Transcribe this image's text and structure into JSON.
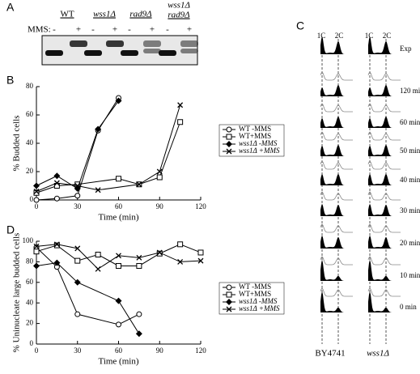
{
  "panel_a": {
    "label": "A",
    "lanes": [
      "WT",
      "wss1Δ",
      "rad9Δ"
    ],
    "double_mutant": [
      "wss1Δ",
      "rad9Δ"
    ],
    "treatment": "MMS:",
    "signs": [
      "-",
      "+",
      "-",
      "+",
      "-",
      "+",
      "-",
      "+"
    ]
  },
  "panel_c": {
    "label": "C",
    "peaks": [
      "1C",
      "2C",
      "1C",
      "2C"
    ],
    "times": [
      "Exp",
      "120 min",
      "60 min",
      "50 min",
      "40 min",
      "30 min",
      "20 min",
      "10 min",
      "0 min"
    ],
    "strains": [
      "BY4741",
      "wss1Δ"
    ]
  },
  "chart_data": [
    {
      "type": "line",
      "panel": "B",
      "xlabel": "Time (min)",
      "ylabel": "% Budded cells",
      "xlim": [
        0,
        120
      ],
      "ylim": [
        0,
        80
      ],
      "xticks": [
        0,
        30,
        60,
        90,
        120
      ],
      "yticks": [
        0,
        20,
        40,
        60,
        80
      ],
      "color": "#000000",
      "series": [
        {
          "name": "WT -MMS",
          "marker": "circle",
          "x": [
            0,
            15,
            30,
            45,
            60
          ],
          "values": [
            0,
            1,
            3,
            49,
            72
          ]
        },
        {
          "name": "WT+MMS",
          "marker": "square",
          "x": [
            0,
            15,
            30,
            60,
            75,
            90,
            105
          ],
          "values": [
            5,
            10,
            11,
            15,
            11,
            16,
            55
          ]
        },
        {
          "name": "wss1Δ -MMS",
          "marker": "diamond",
          "x": [
            0,
            15,
            30,
            45,
            60
          ],
          "values": [
            10,
            17,
            8,
            50,
            70
          ]
        },
        {
          "name": "wss1Δ +MMS",
          "marker": "x",
          "x": [
            0,
            15,
            30,
            45,
            75,
            90,
            105
          ],
          "values": [
            6,
            12,
            10,
            7,
            11,
            20,
            67
          ]
        }
      ]
    },
    {
      "type": "line",
      "panel": "D",
      "xlabel": "Time (min)",
      "ylabel": "% Uninucleate large budded cells",
      "xlim": [
        0,
        120
      ],
      "ylim": [
        0,
        100
      ],
      "xticks": [
        0,
        30,
        60,
        90,
        120
      ],
      "yticks": [
        0,
        20,
        40,
        60,
        80,
        100
      ],
      "color": "#000000",
      "series": [
        {
          "name": "WT -MMS",
          "marker": "circle",
          "x": [
            0,
            15,
            30,
            60,
            75
          ],
          "values": [
            94,
            75,
            29,
            19,
            29
          ]
        },
        {
          "name": "WT+MMS",
          "marker": "square",
          "x": [
            0,
            15,
            30,
            45,
            60,
            75,
            90,
            105,
            120
          ],
          "values": [
            90,
            96,
            81,
            87,
            76,
            76,
            88,
            97,
            89
          ]
        },
        {
          "name": "wss1Δ -MMS",
          "marker": "diamond",
          "x": [
            0,
            15,
            30,
            60,
            75
          ],
          "values": [
            76,
            79,
            60,
            42,
            10
          ]
        },
        {
          "name": "wss1Δ +MMS",
          "marker": "x",
          "x": [
            0,
            15,
            30,
            45,
            60,
            75,
            90,
            105,
            120
          ],
          "values": [
            95,
            97,
            93,
            73,
            86,
            84,
            89,
            80,
            81
          ]
        }
      ]
    }
  ]
}
